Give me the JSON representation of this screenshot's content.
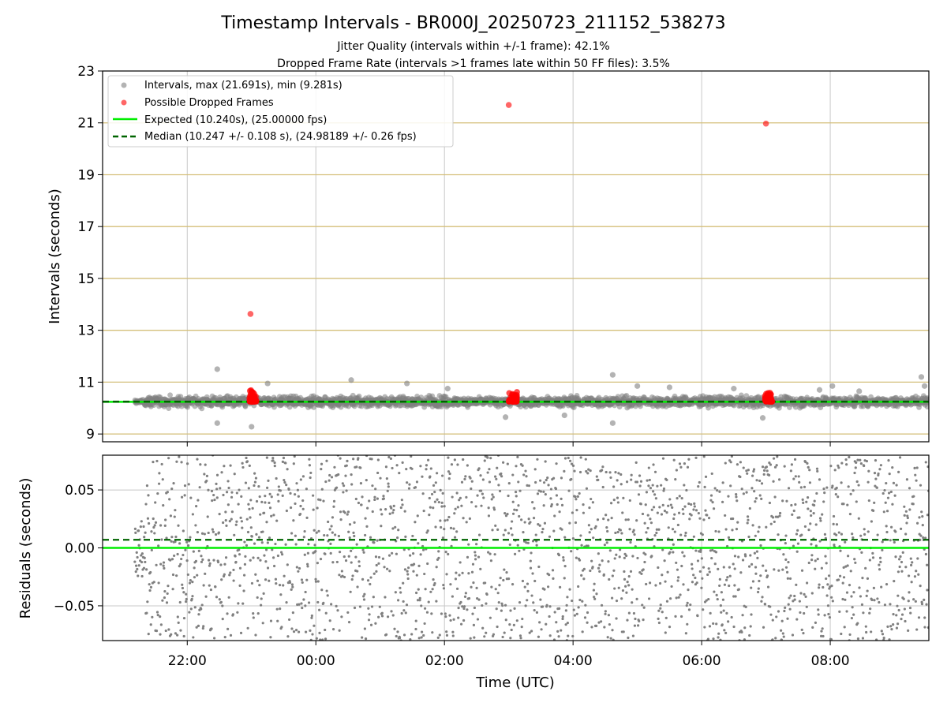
{
  "chart_data": [
    {
      "type": "scatter",
      "title": "Timestamp Intervals - BR000J_20250723_211152_538273",
      "subtitle_lines": [
        "Jitter Quality (intervals within +/-1 frame): 42.1%",
        "Dropped Frame Rate (intervals >1 frames late within 50 FF files): 3.5%"
      ],
      "ylabel": "Intervals (seconds)",
      "xlabel": "",
      "xlim": [
        "20:41",
        "09:32"
      ],
      "ylim": [
        8.7,
        23
      ],
      "yticks": [
        9,
        11,
        13,
        15,
        17,
        19,
        21,
        23
      ],
      "xticks": [
        "22:00",
        "00:00",
        "02:00",
        "04:00",
        "06:00",
        "08:00"
      ],
      "horizontal_lines_at": [
        9,
        11,
        13,
        15,
        17,
        19,
        21
      ],
      "horizontal_line_color": "#d4bf7a",
      "vertical_grid": true,
      "legend_position": "top-left",
      "legend": [
        "Intervals, max (21.691s), min (9.281s)",
        "Possible Dropped Frames",
        "Expected (10.240s), (25.00000 fps)",
        "Median (10.247 +/- 0.108 s), (24.98189 +/- 0.26 fps)"
      ],
      "series": [
        {
          "name": "Intervals, max (21.691s), min (9.281s)",
          "kind": "scatter",
          "color": "#808080",
          "x_range": [
            "21:11",
            "09:32"
          ],
          "center": 10.25,
          "spread": 0.108,
          "outliers": [
            {
              "x": "22:28",
              "y": 11.5
            },
            {
              "x": "22:28",
              "y": 9.42
            },
            {
              "x": "23:00",
              "y": 9.28
            },
            {
              "x": "23:15",
              "y": 10.95
            },
            {
              "x": "00:33",
              "y": 11.08
            },
            {
              "x": "01:25",
              "y": 10.95
            },
            {
              "x": "02:03",
              "y": 10.75
            },
            {
              "x": "02:57",
              "y": 9.65
            },
            {
              "x": "03:52",
              "y": 9.72
            },
            {
              "x": "04:37",
              "y": 11.28
            },
            {
              "x": "04:37",
              "y": 9.42
            },
            {
              "x": "05:00",
              "y": 10.85
            },
            {
              "x": "05:30",
              "y": 10.8
            },
            {
              "x": "06:30",
              "y": 10.75
            },
            {
              "x": "06:57",
              "y": 9.62
            },
            {
              "x": "07:50",
              "y": 10.7
            },
            {
              "x": "08:02",
              "y": 10.85
            },
            {
              "x": "08:27",
              "y": 10.65
            },
            {
              "x": "09:25",
              "y": 11.2
            },
            {
              "x": "09:28",
              "y": 10.85
            }
          ]
        },
        {
          "name": "Possible Dropped Frames",
          "kind": "scatter",
          "color": "#ff0000",
          "points": [
            {
              "x": "22:59",
              "y": 13.63
            },
            {
              "x": "03:00",
              "y": 21.69
            },
            {
              "x": "07:00",
              "y": 20.97
            }
          ],
          "clusters": [
            {
              "x_start": "22:58",
              "x_end": "23:05",
              "y_min": 10.25,
              "y_max": 10.7
            },
            {
              "x_start": "03:00",
              "x_end": "03:08",
              "y_min": 10.25,
              "y_max": 10.65
            },
            {
              "x_start": "06:59",
              "x_end": "07:06",
              "y_min": 10.25,
              "y_max": 10.6
            }
          ]
        },
        {
          "name": "Expected (10.240s), (25.00000 fps)",
          "kind": "hline",
          "y": 10.24,
          "color": "#00ee00",
          "style": "solid"
        },
        {
          "name": "Median (10.247 +/- 0.108 s), (24.98189 +/- 0.26 fps)",
          "kind": "hline",
          "y": 10.247,
          "color": "#006400",
          "style": "dashed"
        }
      ]
    },
    {
      "type": "scatter",
      "title": "",
      "ylabel": "Residuals (seconds)",
      "xlabel": "Time (UTC)",
      "xlim": [
        "20:41",
        "09:32"
      ],
      "ylim": [
        -0.08,
        0.08
      ],
      "yticks": [
        -0.05,
        0.0,
        0.05
      ],
      "ytick_labels": [
        "−0.05",
        "0.00",
        "0.05"
      ],
      "xticks": [
        "22:00",
        "00:00",
        "02:00",
        "04:00",
        "06:00",
        "08:00"
      ],
      "grid": true,
      "series": [
        {
          "name": "",
          "kind": "scatter",
          "color": "#808080",
          "x_range": [
            "21:11",
            "09:32"
          ],
          "y_range": [
            -0.08,
            0.08
          ]
        },
        {
          "name": "",
          "kind": "hline",
          "y": 0.0,
          "color": "#00ee00",
          "style": "solid"
        },
        {
          "name": "",
          "kind": "hline",
          "y": 0.007,
          "color": "#006400",
          "style": "dashed"
        }
      ]
    }
  ]
}
